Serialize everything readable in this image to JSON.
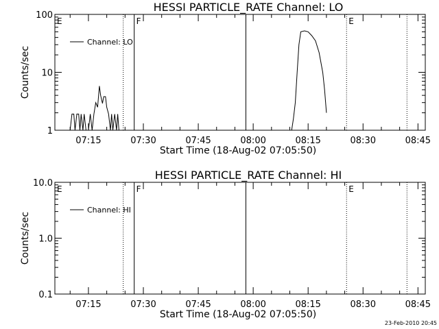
{
  "chart_data": [
    {
      "type": "line",
      "title": "HESSI PARTICLE_RATE Channel: LO",
      "xlabel": "Start Time (18-Aug-02 07:05:50)",
      "ylabel": "Counts/sec",
      "yscale": "log",
      "xlim": [
        "07:05:50",
        "08:47:00"
      ],
      "ylim": [
        1,
        100
      ],
      "x_ticks": [
        "07:15",
        "07:30",
        "07:45",
        "08:00",
        "08:15",
        "08:30",
        "08:45"
      ],
      "y_ticks": [
        "1",
        "10",
        "100"
      ],
      "legend": {
        "position": "top-left",
        "entries": [
          "Channel: LO"
        ]
      },
      "grid": false,
      "flag_letters": [
        {
          "label": "E",
          "time": "07:05:50"
        },
        {
          "label": "F",
          "time": "07:27:30"
        },
        {
          "label": "E",
          "time": "08:25:30"
        }
      ],
      "vertical_markers": [
        {
          "time": "07:24:30",
          "style": "dotted"
        },
        {
          "time": "07:27:30",
          "style": "solid"
        },
        {
          "time": "07:58:00",
          "style": "solid"
        },
        {
          "time": "08:25:30",
          "style": "dotted"
        },
        {
          "time": "08:42:00",
          "style": "dotted"
        }
      ],
      "series": [
        {
          "name": "Channel: LO",
          "segments": [
            [
              [
                "07:10:00",
                1
              ],
              [
                "07:10:30",
                1.9
              ],
              [
                "07:11:00",
                1.9
              ],
              [
                "07:11:20",
                1
              ],
              [
                "07:11:50",
                1.9
              ],
              [
                "07:12:20",
                1.9
              ],
              [
                "07:12:40",
                1
              ],
              [
                "07:13:00",
                1.9
              ],
              [
                "07:13:30",
                1
              ],
              [
                "07:13:50",
                1.9
              ],
              [
                "07:14:20",
                1
              ],
              [
                "07:15:00",
                1
              ],
              [
                "07:15:30",
                1.9
              ],
              [
                "07:16:00",
                1
              ],
              [
                "07:16:30",
                1.9
              ],
              [
                "07:17:00",
                3
              ],
              [
                "07:17:30",
                2.5
              ],
              [
                "07:18:00",
                5.8
              ],
              [
                "07:18:20",
                4
              ],
              [
                "07:18:50",
                2.9
              ],
              [
                "07:19:10",
                3.8
              ],
              [
                "07:19:40",
                3.8
              ],
              [
                "07:20:00",
                2.5
              ],
              [
                "07:20:30",
                1.9
              ],
              [
                "07:21:00",
                1
              ],
              [
                "07:21:20",
                1.9
              ],
              [
                "07:21:40",
                1
              ],
              [
                "07:22:10",
                1.9
              ],
              [
                "07:22:40",
                1
              ],
              [
                "07:23:00",
                1.9
              ],
              [
                "07:23:20",
                1
              ]
            ],
            [
              [
                "08:10:30",
                1
              ],
              [
                "08:11:00",
                1.6
              ],
              [
                "08:11:30",
                3
              ],
              [
                "08:12:00",
                10
              ],
              [
                "08:12:30",
                30
              ],
              [
                "08:13:00",
                50
              ],
              [
                "08:14:00",
                52
              ],
              [
                "08:15:00",
                50
              ],
              [
                "08:16:00",
                43
              ],
              [
                "08:17:00",
                35
              ],
              [
                "08:18:00",
                22
              ],
              [
                "08:19:00",
                10
              ],
              [
                "08:19:30",
                5
              ],
              [
                "08:20:00",
                2
              ]
            ]
          ]
        }
      ]
    },
    {
      "type": "line",
      "title": "HESSI PARTICLE_RATE Channel: HI",
      "xlabel": "Start Time (18-Aug-02 07:05:50)",
      "ylabel": "Counts/sec",
      "yscale": "log",
      "xlim": [
        "07:05:50",
        "08:47:00"
      ],
      "ylim": [
        0.1,
        10
      ],
      "x_ticks": [
        "07:15",
        "07:30",
        "07:45",
        "08:00",
        "08:15",
        "08:30",
        "08:45"
      ],
      "y_ticks": [
        "0.1",
        "1.0",
        "10.0"
      ],
      "legend": {
        "position": "top-left",
        "entries": [
          "Channel: HI"
        ]
      },
      "grid": false,
      "flag_letters": [
        {
          "label": "E",
          "time": "07:05:50"
        },
        {
          "label": "F",
          "time": "07:27:30"
        },
        {
          "label": "E",
          "time": "08:25:30"
        }
      ],
      "vertical_markers": [
        {
          "time": "07:24:30",
          "style": "dotted"
        },
        {
          "time": "07:27:30",
          "style": "solid"
        },
        {
          "time": "07:58:00",
          "style": "solid"
        },
        {
          "time": "08:25:30",
          "style": "dotted"
        },
        {
          "time": "08:42:00",
          "style": "dotted"
        }
      ],
      "series": [
        {
          "name": "Channel: HI",
          "segments": []
        }
      ]
    }
  ],
  "footer": {
    "timestamp": "23-Feb-2010 20:45"
  }
}
